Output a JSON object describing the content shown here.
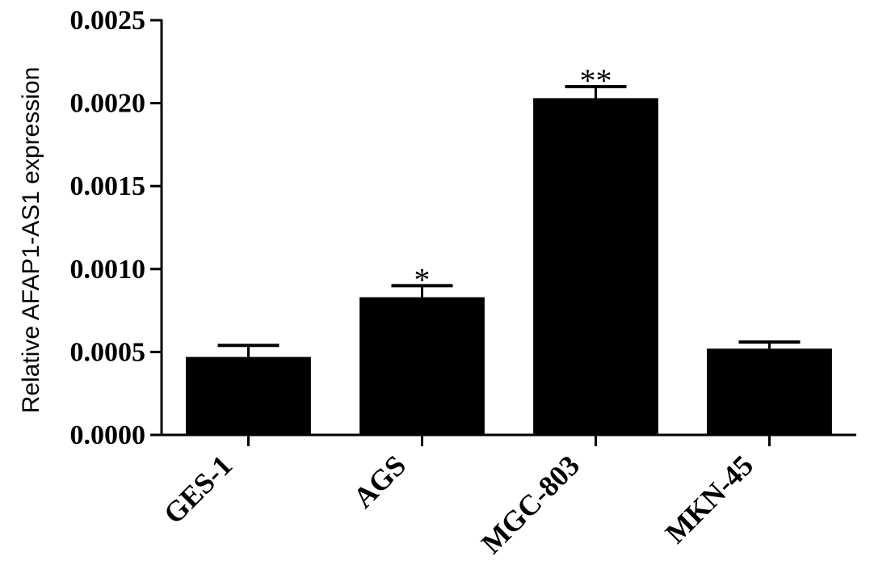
{
  "chart_data": {
    "type": "bar",
    "ylabel": "Relative AFAP1-AS1 expression",
    "xlabel": "",
    "categories": [
      "GES-1",
      "AGS",
      "MGC-803",
      "MKN-45"
    ],
    "values": [
      0.00047,
      0.00083,
      0.00203,
      0.00052
    ],
    "errors": [
      7e-05,
      7e-05,
      7e-05,
      4e-05
    ],
    "significance": [
      "",
      "*",
      "**",
      ""
    ],
    "ylim": [
      0,
      0.0025
    ],
    "yticks": [
      0.0,
      0.0005,
      0.001,
      0.0015,
      0.002,
      0.0025
    ],
    "ytick_labels": [
      "0.0000",
      "0.0005",
      "0.0010",
      "0.0015",
      "0.0020",
      "0.0025"
    ],
    "bar_color": "#000000",
    "grid": false
  }
}
